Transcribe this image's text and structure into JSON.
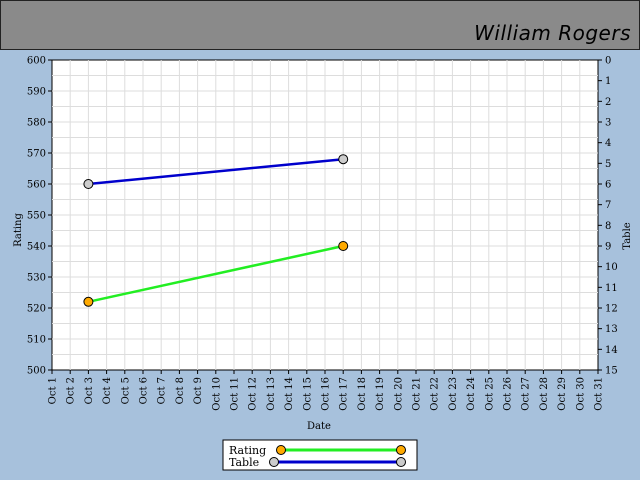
{
  "header": {
    "player_name": "William Rogers"
  },
  "colors": {
    "background": "#a7c1dc",
    "header": "#8a8a8a",
    "rating_line": "#22ee22",
    "rating_marker": "#ffaa00",
    "table_line": "#0000cc",
    "table_marker": "#cccccc"
  },
  "chart_data": {
    "type": "line",
    "xlabel": "Date",
    "ylabel": "Rating",
    "y2label": "Table",
    "categories": [
      "Oct 1",
      "Oct 2",
      "Oct 3",
      "Oct 4",
      "Oct 5",
      "Oct 6",
      "Oct 7",
      "Oct 8",
      "Oct 9",
      "Oct 10",
      "Oct 11",
      "Oct 12",
      "Oct 13",
      "Oct 14",
      "Oct 15",
      "Oct 16",
      "Oct 17",
      "Oct 18",
      "Oct 19",
      "Oct 20",
      "Oct 21",
      "Oct 22",
      "Oct 23",
      "Oct 24",
      "Oct 25",
      "Oct 26",
      "Oct 27",
      "Oct 28",
      "Oct 29",
      "Oct 30",
      "Oct 31"
    ],
    "ylim": [
      500,
      600
    ],
    "yticks": [
      500,
      510,
      520,
      530,
      540,
      550,
      560,
      570,
      580,
      590,
      600
    ],
    "y2lim": [
      15,
      0
    ],
    "y2ticks": [
      0,
      1,
      2,
      3,
      4,
      5,
      6,
      7,
      8,
      9,
      10,
      11,
      12,
      13,
      14,
      15
    ],
    "grid": true,
    "legend_position": "bottom-center",
    "series": [
      {
        "name": "Rating",
        "axis": "left",
        "points": [
          {
            "x": "Oct 3",
            "y": 522
          },
          {
            "x": "Oct 17",
            "y": 540
          }
        ]
      },
      {
        "name": "Table",
        "axis": "right",
        "points": [
          {
            "x": "Oct 3",
            "y": 6
          },
          {
            "x": "Oct 17",
            "y": 4.8
          }
        ]
      }
    ]
  }
}
